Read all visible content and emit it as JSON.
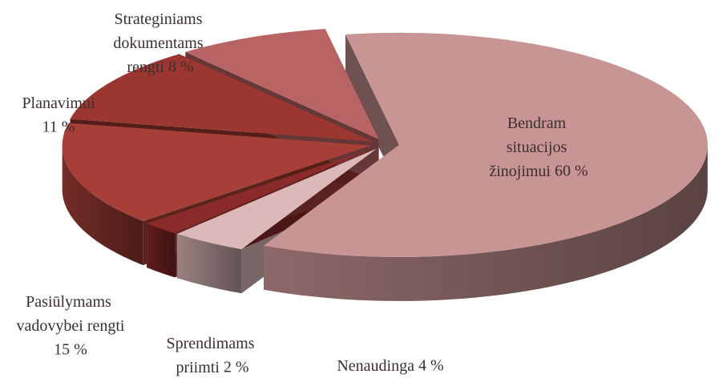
{
  "chart_data": {
    "type": "pie",
    "categories": [
      "Bendram situacijos žinojimui",
      "Nenaudinga",
      "Sprendimams priimti",
      "Pasiūlymams vadovybei rengti",
      "Planavimui",
      "Strateginiams dokumentams rengti"
    ],
    "values": [
      60,
      4,
      2,
      15,
      11,
      8
    ],
    "value_labels": [
      "60 %",
      "4 %",
      "2 %",
      "15 %",
      "11 %",
      "8 %"
    ],
    "colors": [
      "#c99494",
      "#dcb8b8",
      "#8a2a2a",
      "#a63f38",
      "#9c3630",
      "#b96464"
    ]
  }
}
